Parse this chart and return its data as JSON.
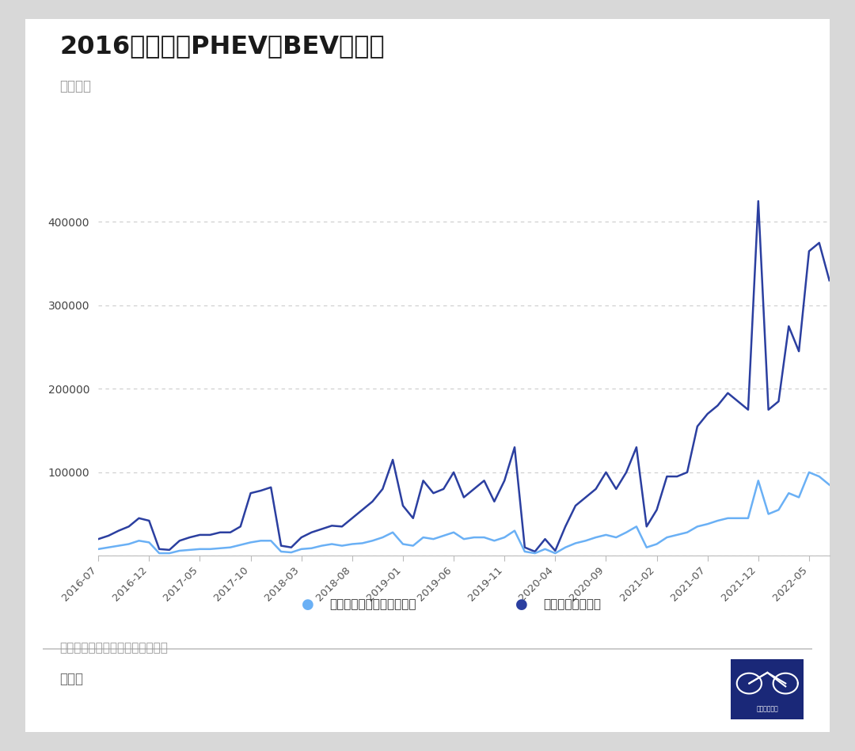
{
  "title": "2016年以来的PHEV和BEV的销量",
  "subtitle": "单位：台",
  "source": "数据来源：汽车工业协会销售数据",
  "author": "朱玉龙",
  "legend_phev": "插电式混合动力乘用车销量",
  "legend_bev": "纯电动乘用车销量",
  "phev_color": "#6ab0f5",
  "bev_color": "#2b3fa0",
  "background_color": "#ffffff",
  "outer_bg": "#d8d8d8",
  "ylim": [
    0,
    450000
  ],
  "yticks": [
    0,
    100000,
    200000,
    300000,
    400000
  ],
  "x_labels": [
    "2016-07",
    "2016-12",
    "2017-05",
    "2017-10",
    "2018-03",
    "2018-08",
    "2019-01",
    "2019-06",
    "2019-11",
    "2020-04",
    "2020-09",
    "2021-02",
    "2021-07",
    "2021-12",
    "2022-05"
  ],
  "dates": [
    "2016-07",
    "2016-08",
    "2016-09",
    "2016-10",
    "2016-11",
    "2016-12",
    "2017-01",
    "2017-02",
    "2017-03",
    "2017-04",
    "2017-05",
    "2017-06",
    "2017-07",
    "2017-08",
    "2017-09",
    "2017-10",
    "2017-11",
    "2017-12",
    "2018-01",
    "2018-02",
    "2018-03",
    "2018-04",
    "2018-05",
    "2018-06",
    "2018-07",
    "2018-08",
    "2018-09",
    "2018-10",
    "2018-11",
    "2018-12",
    "2019-01",
    "2019-02",
    "2019-03",
    "2019-04",
    "2019-05",
    "2019-06",
    "2019-07",
    "2019-08",
    "2019-09",
    "2019-10",
    "2019-11",
    "2019-12",
    "2020-01",
    "2020-02",
    "2020-03",
    "2020-04",
    "2020-05",
    "2020-06",
    "2020-07",
    "2020-08",
    "2020-09",
    "2020-10",
    "2020-11",
    "2020-12",
    "2021-01",
    "2021-02",
    "2021-03",
    "2021-04",
    "2021-05",
    "2021-06",
    "2021-07",
    "2021-08",
    "2021-09",
    "2021-10",
    "2021-11",
    "2021-12",
    "2022-01",
    "2022-02",
    "2022-03",
    "2022-04",
    "2022-05",
    "2022-06",
    "2022-07"
  ],
  "bev": [
    20000,
    24000,
    30000,
    35000,
    45000,
    42000,
    8000,
    7000,
    18000,
    22000,
    25000,
    25000,
    28000,
    28000,
    35000,
    75000,
    78000,
    82000,
    12000,
    10000,
    22000,
    28000,
    32000,
    36000,
    35000,
    45000,
    55000,
    65000,
    80000,
    115000,
    60000,
    45000,
    90000,
    75000,
    80000,
    100000,
    70000,
    80000,
    90000,
    65000,
    90000,
    130000,
    10000,
    5000,
    20000,
    6000,
    35000,
    60000,
    70000,
    80000,
    100000,
    80000,
    100000,
    130000,
    35000,
    55000,
    95000,
    95000,
    100000,
    155000,
    170000,
    180000,
    195000,
    185000,
    175000,
    425000,
    175000,
    185000,
    275000,
    245000,
    365000,
    375000,
    330000
  ],
  "phev": [
    8000,
    10000,
    12000,
    14000,
    18000,
    16000,
    3000,
    3000,
    6000,
    7000,
    8000,
    8000,
    9000,
    10000,
    13000,
    16000,
    18000,
    18000,
    5000,
    4000,
    8000,
    9000,
    12000,
    14000,
    12000,
    14000,
    15000,
    18000,
    22000,
    28000,
    14000,
    12000,
    22000,
    20000,
    24000,
    28000,
    20000,
    22000,
    22000,
    18000,
    22000,
    30000,
    5000,
    3000,
    8000,
    3000,
    10000,
    15000,
    18000,
    22000,
    25000,
    22000,
    28000,
    35000,
    10000,
    14000,
    22000,
    25000,
    28000,
    35000,
    38000,
    42000,
    45000,
    45000,
    45000,
    90000,
    50000,
    55000,
    75000,
    70000,
    100000,
    95000,
    85000
  ]
}
